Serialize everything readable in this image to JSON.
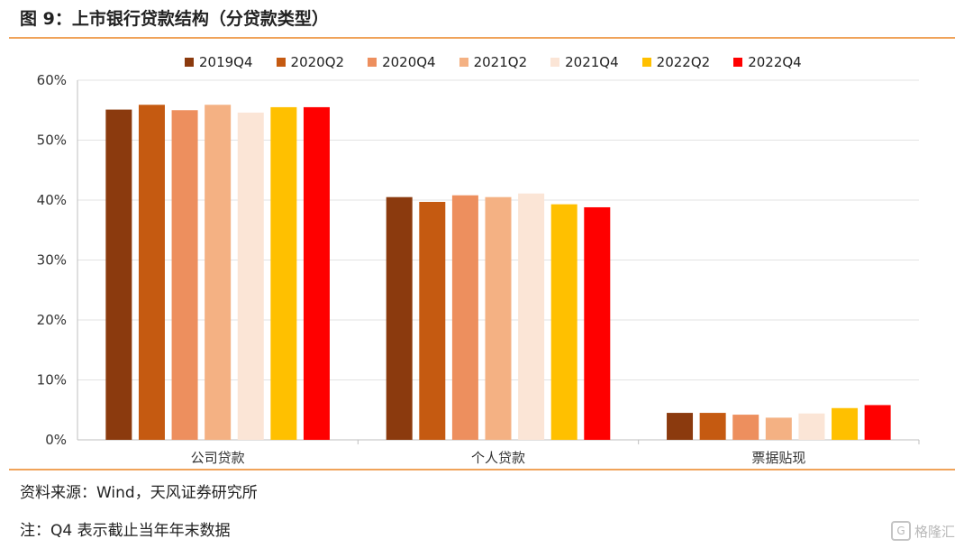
{
  "figure": {
    "title": "图 9：上市银行贷款结构（分贷款类型）",
    "source": "资料来源：Wind，天风证券研究所",
    "note": "注：Q4 表示截止当年年末数据",
    "watermark": "格隆汇"
  },
  "chart_data": {
    "type": "bar",
    "categories": [
      "公司贷款",
      "个人贷款",
      "票据贴现"
    ],
    "series": [
      {
        "name": "2019Q4",
        "color": "#8b3a0e",
        "values": [
          55.1,
          40.5,
          4.5
        ]
      },
      {
        "name": "2020Q2",
        "color": "#c55a11",
        "values": [
          55.9,
          39.7,
          4.5
        ]
      },
      {
        "name": "2020Q4",
        "color": "#ed8f5e",
        "values": [
          55.0,
          40.8,
          4.2
        ]
      },
      {
        "name": "2021Q2",
        "color": "#f4b183",
        "values": [
          55.9,
          40.5,
          3.7
        ]
      },
      {
        "name": "2021Q4",
        "color": "#fbe5d6",
        "values": [
          54.6,
          41.1,
          4.4
        ]
      },
      {
        "name": "2022Q2",
        "color": "#ffc000",
        "values": [
          55.5,
          39.3,
          5.3
        ]
      },
      {
        "name": "2022Q4",
        "color": "#ff0000",
        "values": [
          55.5,
          38.8,
          5.8
        ]
      }
    ],
    "ylim": [
      0,
      60
    ],
    "yticks": [
      "0%",
      "10%",
      "20%",
      "30%",
      "40%",
      "50%",
      "60%"
    ],
    "ytick_values": [
      0,
      10,
      20,
      30,
      40,
      50,
      60
    ],
    "grid": true,
    "legend_position": "top"
  }
}
